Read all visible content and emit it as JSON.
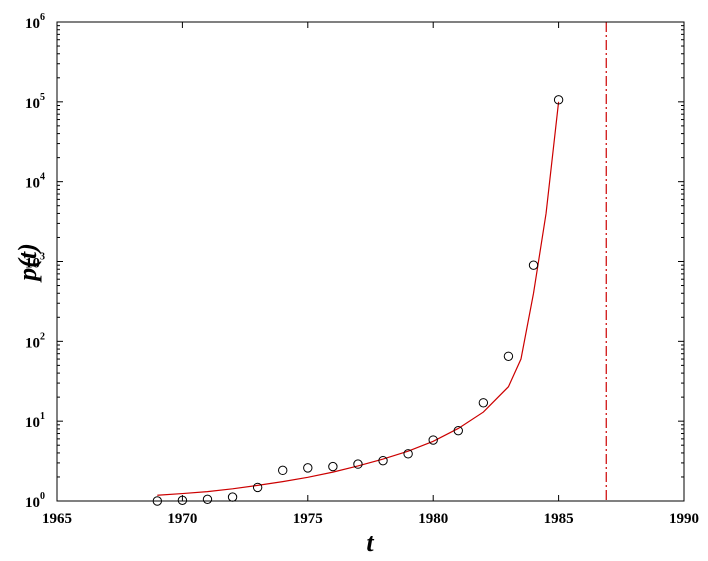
{
  "chart_data": {
    "type": "scatter",
    "title": "",
    "xlabel": "t",
    "ylabel": "p(t)",
    "xlim": [
      1965,
      1990
    ],
    "ylim": [
      1,
      1000000
    ],
    "yscale": "log",
    "grid": false,
    "x_ticks": [
      "1965",
      "1970",
      "1975",
      "1980",
      "1985",
      "1990"
    ],
    "y_ticks": [
      {
        "base": "10",
        "exp": "0"
      },
      {
        "base": "10",
        "exp": "1"
      },
      {
        "base": "10",
        "exp": "2"
      },
      {
        "base": "10",
        "exp": "3"
      },
      {
        "base": "10",
        "exp": "4"
      },
      {
        "base": "10",
        "exp": "5"
      },
      {
        "base": "10",
        "exp": "6"
      }
    ],
    "series": [
      {
        "kind": "points",
        "marker": "open-circle",
        "color": "#000000",
        "x": [
          1969,
          1970,
          1971,
          1972,
          1973,
          1974,
          1975,
          1976,
          1977,
          1978,
          1979,
          1980,
          1981,
          1982,
          1983,
          1984,
          1985
        ],
        "y": [
          1.0,
          1.02,
          1.05,
          1.12,
          1.48,
          2.42,
          2.6,
          2.7,
          2.9,
          3.2,
          3.9,
          5.8,
          7.6,
          17,
          65,
          900,
          106000
        ]
      },
      {
        "kind": "fit-curve",
        "color": "#cc0000",
        "x": [
          1969,
          1970,
          1971,
          1972,
          1973,
          1974,
          1975,
          1976,
          1977,
          1978,
          1979,
          1980,
          1981,
          1982,
          1983,
          1983.5,
          1984,
          1984.5,
          1985
        ],
        "y": [
          1.18,
          1.24,
          1.31,
          1.42,
          1.57,
          1.75,
          1.98,
          2.3,
          2.75,
          3.35,
          4.2,
          5.6,
          8.1,
          13,
          27,
          60,
          400,
          4000,
          100000
        ]
      }
    ],
    "vertical_line": {
      "x": 1986.9,
      "color": "#cc0000",
      "style": "dash-dot"
    }
  }
}
